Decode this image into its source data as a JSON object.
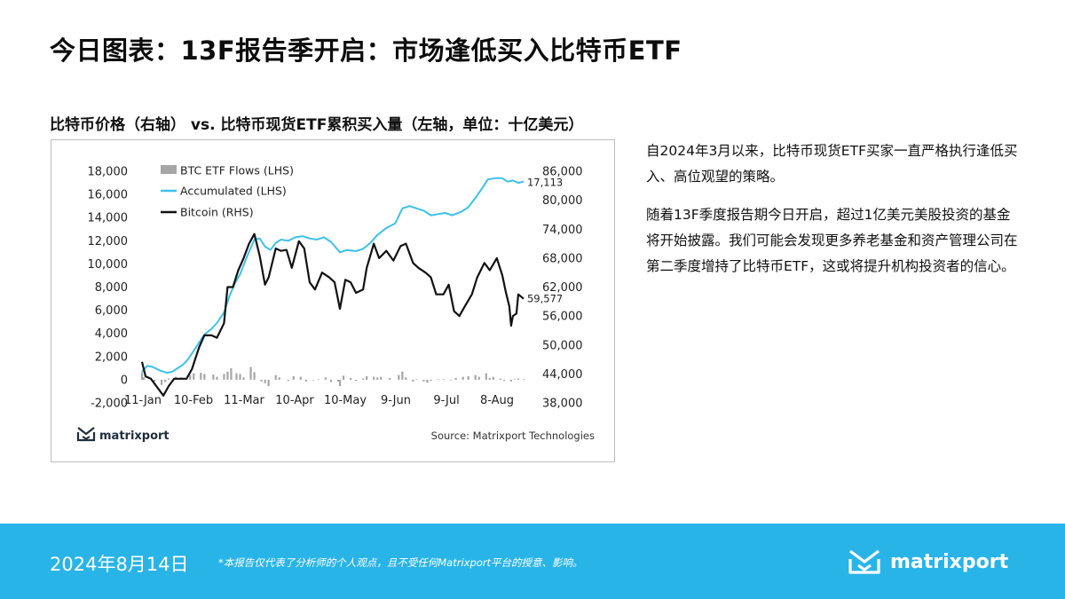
{
  "page": {
    "title": "今日图表：13F报告季开启：市场逢低买入比特币ETF",
    "chart_heading": "比特币价格（右轴） vs. 比特币现货ETF累积买入量（左轴，单位：十亿美元）"
  },
  "commentary": {
    "paragraph1": "自2024年3月以来，比特币现货ETF买家一直严格执行逢低买入、高位观望的策略。",
    "paragraph2": "随着13F季度报告期今日开启，超过1亿美元美股投资的基金将开始披露。我们可能会发现更多养老基金和资产管理公司在第二季度增持了比特币ETF，这或将提升机构投资者的信心。"
  },
  "footer": {
    "date": "2024年8月14日",
    "disclaimer": "*本报告仅代表了分析师的个人观点，且不受任何Matrixport平台的授意、影响。",
    "brand": "matrixport"
  },
  "chart_brand": "matrixport",
  "chart_source": "Source: Matrixport Technologies",
  "colors": {
    "flows": "#a6a6a6",
    "accumulated": "#3ec0ea",
    "bitcoin": "#111111",
    "footer_bg": "#29b4e8"
  },
  "chart_data": {
    "type": "line",
    "x_tick_labels": [
      "11-Jan",
      "10-Feb",
      "11-Mar",
      "10-Apr",
      "10-May",
      "9-Jun",
      "9-Jul",
      "8-Aug"
    ],
    "x_range": [
      "2024-01-11",
      "2024-08-14"
    ],
    "y_left": {
      "ylim": [
        -2000,
        18000
      ],
      "ticks": [
        "-2,000",
        "0",
        "2,000",
        "4,000",
        "6,000",
        "8,000",
        "10,000",
        "12,000",
        "14,000",
        "16,000",
        "18,000"
      ]
    },
    "y_right": {
      "ylim": [
        38000,
        86000
      ],
      "ticks": [
        "38,000",
        "44,000",
        "50,000",
        "56,000",
        "62,000",
        "68,000",
        "74,000",
        "80,000",
        "86,000"
      ]
    },
    "legend_position": "top-left",
    "series": [
      {
        "name": "BTC ETF Flows (LHS)",
        "type": "bar",
        "axis": "left",
        "values": [
          {
            "x": "2024-01-11",
            "y": 650
          },
          {
            "x": "2024-01-12",
            "y": 200
          },
          {
            "x": "2024-01-16",
            "y": 50
          },
          {
            "x": "2024-01-18",
            "y": -150
          },
          {
            "x": "2024-01-22",
            "y": -450
          },
          {
            "x": "2024-01-24",
            "y": -200
          },
          {
            "x": "2024-01-26",
            "y": 100
          },
          {
            "x": "2024-01-30",
            "y": 250
          },
          {
            "x": "2024-02-02",
            "y": 200
          },
          {
            "x": "2024-02-07",
            "y": 400
          },
          {
            "x": "2024-02-09",
            "y": 550
          },
          {
            "x": "2024-02-13",
            "y": 600
          },
          {
            "x": "2024-02-15",
            "y": 500
          },
          {
            "x": "2024-02-20",
            "y": 450
          },
          {
            "x": "2024-02-22",
            "y": 250
          },
          {
            "x": "2024-02-26",
            "y": 500
          },
          {
            "x": "2024-02-28",
            "y": 700
          },
          {
            "x": "2024-03-01",
            "y": 1000
          },
          {
            "x": "2024-03-04",
            "y": 550
          },
          {
            "x": "2024-03-06",
            "y": 500
          },
          {
            "x": "2024-03-08",
            "y": 200
          },
          {
            "x": "2024-03-12",
            "y": 1100
          },
          {
            "x": "2024-03-14",
            "y": 650
          },
          {
            "x": "2024-03-18",
            "y": -150
          },
          {
            "x": "2024-03-20",
            "y": -300
          },
          {
            "x": "2024-03-22",
            "y": -550
          },
          {
            "x": "2024-03-26",
            "y": 400
          },
          {
            "x": "2024-03-28",
            "y": 200
          },
          {
            "x": "2024-04-02",
            "y": -100
          },
          {
            "x": "2024-04-05",
            "y": 300
          },
          {
            "x": "2024-04-09",
            "y": 250
          },
          {
            "x": "2024-04-12",
            "y": -150
          },
          {
            "x": "2024-04-16",
            "y": -50
          },
          {
            "x": "2024-04-19",
            "y": 50
          },
          {
            "x": "2024-04-23",
            "y": 200
          },
          {
            "x": "2024-04-26",
            "y": -200
          },
          {
            "x": "2024-04-30",
            "y": -150
          },
          {
            "x": "2024-05-01",
            "y": -550
          },
          {
            "x": "2024-05-03",
            "y": 350
          },
          {
            "x": "2024-05-07",
            "y": 150
          },
          {
            "x": "2024-05-10",
            "y": -100
          },
          {
            "x": "2024-05-14",
            "y": 100
          },
          {
            "x": "2024-05-16",
            "y": 300
          },
          {
            "x": "2024-05-20",
            "y": 250
          },
          {
            "x": "2024-05-22",
            "y": 200
          },
          {
            "x": "2024-05-24",
            "y": 250
          },
          {
            "x": "2024-05-29",
            "y": 150
          },
          {
            "x": "2024-06-03",
            "y": 400
          },
          {
            "x": "2024-06-05",
            "y": 700
          },
          {
            "x": "2024-06-07",
            "y": 200
          },
          {
            "x": "2024-06-11",
            "y": -150
          },
          {
            "x": "2024-06-13",
            "y": 50
          },
          {
            "x": "2024-06-17",
            "y": -150
          },
          {
            "x": "2024-06-19",
            "y": -250
          },
          {
            "x": "2024-06-21",
            "y": -100
          },
          {
            "x": "2024-06-25",
            "y": 50
          },
          {
            "x": "2024-06-28",
            "y": 50
          },
          {
            "x": "2024-07-02",
            "y": -50
          },
          {
            "x": "2024-07-05",
            "y": 150
          },
          {
            "x": "2024-07-09",
            "y": 250
          },
          {
            "x": "2024-07-12",
            "y": 300
          },
          {
            "x": "2024-07-16",
            "y": 400
          },
          {
            "x": "2024-07-18",
            "y": 250
          },
          {
            "x": "2024-07-22",
            "y": 550
          },
          {
            "x": "2024-07-24",
            "y": 150
          },
          {
            "x": "2024-07-26",
            "y": 250
          },
          {
            "x": "2024-07-30",
            "y": 100
          },
          {
            "x": "2024-08-01",
            "y": -100
          },
          {
            "x": "2024-08-05",
            "y": -150
          },
          {
            "x": "2024-08-07",
            "y": 50
          },
          {
            "x": "2024-08-09",
            "y": 100
          },
          {
            "x": "2024-08-12",
            "y": 50
          }
        ]
      },
      {
        "name": "Accumulated (LHS)",
        "type": "line",
        "axis": "left",
        "values": [
          {
            "x": "2024-01-11",
            "y": 700
          },
          {
            "x": "2024-01-14",
            "y": 1200
          },
          {
            "x": "2024-01-17",
            "y": 1100
          },
          {
            "x": "2024-01-21",
            "y": 800
          },
          {
            "x": "2024-01-25",
            "y": 600
          },
          {
            "x": "2024-01-28",
            "y": 700
          },
          {
            "x": "2024-01-31",
            "y": 1000
          },
          {
            "x": "2024-02-03",
            "y": 1300
          },
          {
            "x": "2024-02-06",
            "y": 1800
          },
          {
            "x": "2024-02-09",
            "y": 2500
          },
          {
            "x": "2024-02-12",
            "y": 3200
          },
          {
            "x": "2024-02-15",
            "y": 3900
          },
          {
            "x": "2024-02-19",
            "y": 4400
          },
          {
            "x": "2024-02-22",
            "y": 4900
          },
          {
            "x": "2024-02-26",
            "y": 5800
          },
          {
            "x": "2024-02-29",
            "y": 7200
          },
          {
            "x": "2024-03-03",
            "y": 8300
          },
          {
            "x": "2024-03-06",
            "y": 9100
          },
          {
            "x": "2024-03-09",
            "y": 10300
          },
          {
            "x": "2024-03-12",
            "y": 11400
          },
          {
            "x": "2024-03-14",
            "y": 12100
          },
          {
            "x": "2024-03-17",
            "y": 12200
          },
          {
            "x": "2024-03-20",
            "y": 11500
          },
          {
            "x": "2024-03-23",
            "y": 11200
          },
          {
            "x": "2024-03-26",
            "y": 11800
          },
          {
            "x": "2024-03-29",
            "y": 12100
          },
          {
            "x": "2024-04-02",
            "y": 12000
          },
          {
            "x": "2024-04-06",
            "y": 12300
          },
          {
            "x": "2024-04-10",
            "y": 12400
          },
          {
            "x": "2024-04-14",
            "y": 12200
          },
          {
            "x": "2024-04-18",
            "y": 12100
          },
          {
            "x": "2024-04-22",
            "y": 12300
          },
          {
            "x": "2024-04-26",
            "y": 11900
          },
          {
            "x": "2024-05-01",
            "y": 11000
          },
          {
            "x": "2024-05-05",
            "y": 11200
          },
          {
            "x": "2024-05-10",
            "y": 11100
          },
          {
            "x": "2024-05-14",
            "y": 11300
          },
          {
            "x": "2024-05-18",
            "y": 11800
          },
          {
            "x": "2024-05-22",
            "y": 12500
          },
          {
            "x": "2024-05-27",
            "y": 13100
          },
          {
            "x": "2024-06-01",
            "y": 13500
          },
          {
            "x": "2024-06-05",
            "y": 14800
          },
          {
            "x": "2024-06-09",
            "y": 15000
          },
          {
            "x": "2024-06-13",
            "y": 14800
          },
          {
            "x": "2024-06-17",
            "y": 14600
          },
          {
            "x": "2024-06-21",
            "y": 14200
          },
          {
            "x": "2024-06-25",
            "y": 14300
          },
          {
            "x": "2024-06-29",
            "y": 14400
          },
          {
            "x": "2024-07-03",
            "y": 14200
          },
          {
            "x": "2024-07-08",
            "y": 14500
          },
          {
            "x": "2024-07-12",
            "y": 14900
          },
          {
            "x": "2024-07-16",
            "y": 15700
          },
          {
            "x": "2024-07-20",
            "y": 16600
          },
          {
            "x": "2024-07-23",
            "y": 17300
          },
          {
            "x": "2024-07-27",
            "y": 17400
          },
          {
            "x": "2024-07-31",
            "y": 17400
          },
          {
            "x": "2024-08-03",
            "y": 17100
          },
          {
            "x": "2024-08-06",
            "y": 17200
          },
          {
            "x": "2024-08-09",
            "y": 17000
          },
          {
            "x": "2024-08-12",
            "y": 17113
          }
        ]
      },
      {
        "name": "Bitcoin (RHS)",
        "type": "line",
        "axis": "right",
        "values": [
          {
            "x": "2024-01-11",
            "y": 46500
          },
          {
            "x": "2024-01-13",
            "y": 43500
          },
          {
            "x": "2024-01-16",
            "y": 43000
          },
          {
            "x": "2024-01-19",
            "y": 41500
          },
          {
            "x": "2024-01-23",
            "y": 39500
          },
          {
            "x": "2024-01-26",
            "y": 41500
          },
          {
            "x": "2024-01-29",
            "y": 43000
          },
          {
            "x": "2024-02-01",
            "y": 43000
          },
          {
            "x": "2024-02-05",
            "y": 43000
          },
          {
            "x": "2024-02-08",
            "y": 45000
          },
          {
            "x": "2024-02-12",
            "y": 49500
          },
          {
            "x": "2024-02-15",
            "y": 52000
          },
          {
            "x": "2024-02-19",
            "y": 52000
          },
          {
            "x": "2024-02-22",
            "y": 51500
          },
          {
            "x": "2024-02-26",
            "y": 54500
          },
          {
            "x": "2024-02-28",
            "y": 62000
          },
          {
            "x": "2024-03-02",
            "y": 62000
          },
          {
            "x": "2024-03-05",
            "y": 65500
          },
          {
            "x": "2024-03-08",
            "y": 68000
          },
          {
            "x": "2024-03-11",
            "y": 71000
          },
          {
            "x": "2024-03-14",
            "y": 73000
          },
          {
            "x": "2024-03-17",
            "y": 68500
          },
          {
            "x": "2024-03-20",
            "y": 62500
          },
          {
            "x": "2024-03-22",
            "y": 64000
          },
          {
            "x": "2024-03-26",
            "y": 70000
          },
          {
            "x": "2024-03-29",
            "y": 69500
          },
          {
            "x": "2024-04-01",
            "y": 69700
          },
          {
            "x": "2024-04-04",
            "y": 66000
          },
          {
            "x": "2024-04-08",
            "y": 71500
          },
          {
            "x": "2024-04-11",
            "y": 70000
          },
          {
            "x": "2024-04-14",
            "y": 63000
          },
          {
            "x": "2024-04-17",
            "y": 61500
          },
          {
            "x": "2024-04-21",
            "y": 65000
          },
          {
            "x": "2024-04-25",
            "y": 64000
          },
          {
            "x": "2024-04-28",
            "y": 63000
          },
          {
            "x": "2024-05-01",
            "y": 57500
          },
          {
            "x": "2024-05-04",
            "y": 63500
          },
          {
            "x": "2024-05-07",
            "y": 63000
          },
          {
            "x": "2024-05-10",
            "y": 60800
          },
          {
            "x": "2024-05-14",
            "y": 61500
          },
          {
            "x": "2024-05-16",
            "y": 66000
          },
          {
            "x": "2024-05-20",
            "y": 71000
          },
          {
            "x": "2024-05-23",
            "y": 68000
          },
          {
            "x": "2024-05-27",
            "y": 69500
          },
          {
            "x": "2024-05-31",
            "y": 67500
          },
          {
            "x": "2024-06-04",
            "y": 70500
          },
          {
            "x": "2024-06-07",
            "y": 71000
          },
          {
            "x": "2024-06-11",
            "y": 67000
          },
          {
            "x": "2024-06-14",
            "y": 66000
          },
          {
            "x": "2024-06-18",
            "y": 65000
          },
          {
            "x": "2024-06-21",
            "y": 64000
          },
          {
            "x": "2024-06-24",
            "y": 60500
          },
          {
            "x": "2024-06-28",
            "y": 60500
          },
          {
            "x": "2024-07-01",
            "y": 62500
          },
          {
            "x": "2024-07-04",
            "y": 57000
          },
          {
            "x": "2024-07-07",
            "y": 56000
          },
          {
            "x": "2024-07-10",
            "y": 58000
          },
          {
            "x": "2024-07-14",
            "y": 60500
          },
          {
            "x": "2024-07-17",
            "y": 64000
          },
          {
            "x": "2024-07-21",
            "y": 67000
          },
          {
            "x": "2024-07-24",
            "y": 65500
          },
          {
            "x": "2024-07-28",
            "y": 68000
          },
          {
            "x": "2024-07-31",
            "y": 64500
          },
          {
            "x": "2024-08-02",
            "y": 61000
          },
          {
            "x": "2024-08-04",
            "y": 58000
          },
          {
            "x": "2024-08-05",
            "y": 54000
          },
          {
            "x": "2024-08-06",
            "y": 56000
          },
          {
            "x": "2024-08-08",
            "y": 56500
          },
          {
            "x": "2024-08-09",
            "y": 60500
          },
          {
            "x": "2024-08-12",
            "y": 59577
          }
        ]
      }
    ],
    "annotations": [
      {
        "series": "Accumulated (LHS)",
        "text": "17,113"
      },
      {
        "series": "Bitcoin (RHS)",
        "text": "59,577"
      }
    ]
  }
}
